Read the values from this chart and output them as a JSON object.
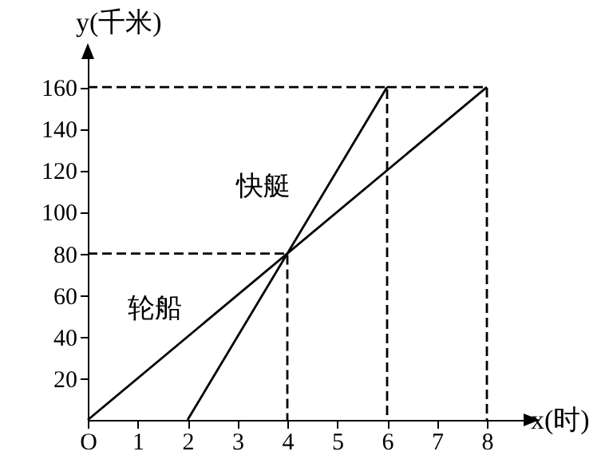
{
  "chart_data": {
    "type": "line",
    "xlabel": "x(时)",
    "ylabel": "y(千米)",
    "xlim": [
      0,
      8.8
    ],
    "ylim": [
      0,
      175
    ],
    "xticks": [
      {
        "value": 0,
        "label": "O"
      },
      1,
      2,
      3,
      4,
      5,
      6,
      7,
      8
    ],
    "yticks": [
      20,
      40,
      60,
      80,
      100,
      120,
      140,
      160
    ],
    "grid": false,
    "marker": "none",
    "series": [
      {
        "name": "轮船",
        "color": "#000000",
        "x": [
          0,
          8
        ],
        "values": [
          0,
          160
        ],
        "line_style": "solid"
      },
      {
        "name": "快艇",
        "color": "#000000",
        "x": [
          2,
          6
        ],
        "values": [
          0,
          160
        ],
        "line_style": "solid"
      },
      {
        "color": "#000000",
        "x": [
          0,
          6,
          6
        ],
        "values": [
          160,
          160,
          0
        ],
        "line_style": "dashed"
      },
      {
        "color": "#000000",
        "x": [
          6,
          8,
          8
        ],
        "values": [
          160,
          160,
          0
        ],
        "line_style": "dashed"
      },
      {
        "color": "#000000",
        "x": [
          0,
          4,
          4
        ],
        "values": [
          80,
          80,
          0
        ],
        "line_style": "dashed"
      }
    ]
  }
}
